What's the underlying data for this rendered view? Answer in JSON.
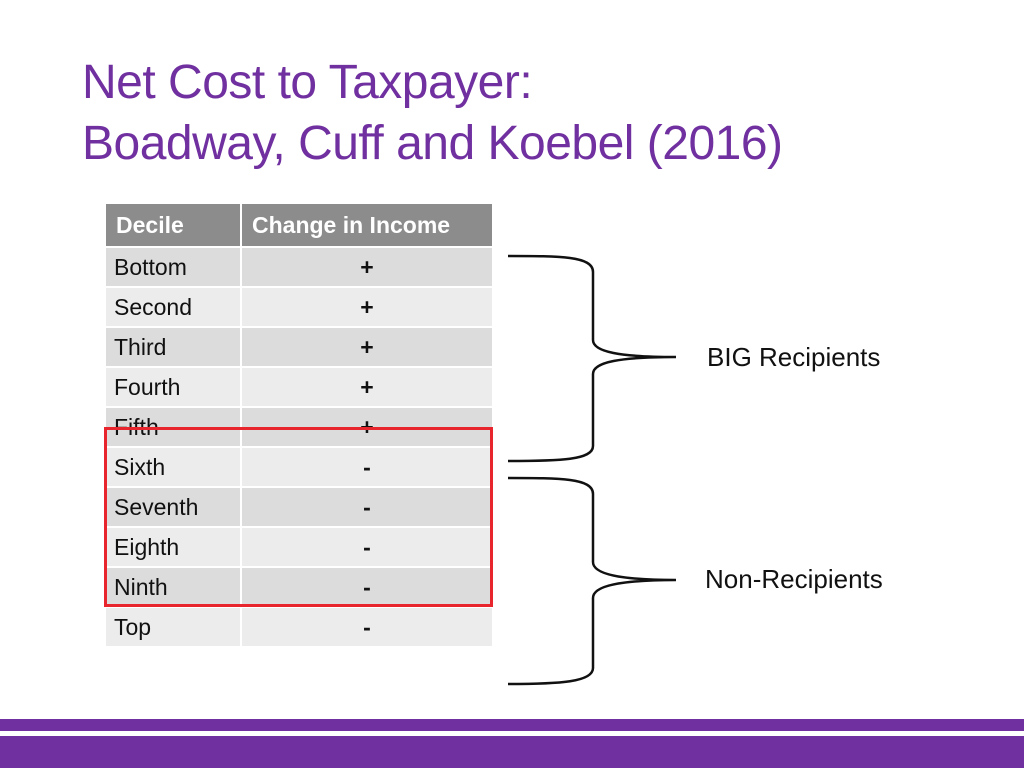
{
  "slide": {
    "title_line1": "Net Cost to Taxpayer:",
    "title_line2": "Boadway, Cuff and Koebel (2016)"
  },
  "table": {
    "headers": [
      "Decile",
      "Change in Income"
    ],
    "rows": [
      {
        "decile": "Bottom",
        "change": "+"
      },
      {
        "decile": "Second",
        "change": "+"
      },
      {
        "decile": "Third",
        "change": "+"
      },
      {
        "decile": "Fourth",
        "change": "+"
      },
      {
        "decile": "Fifth",
        "change": "+"
      },
      {
        "decile": "Sixth",
        "change": "-"
      },
      {
        "decile": "Seventh",
        "change": "-"
      },
      {
        "decile": "Eighth",
        "change": "-"
      },
      {
        "decile": "Ninth",
        "change": "-"
      },
      {
        "decile": "Top",
        "change": "-"
      }
    ]
  },
  "groups": {
    "big": "BIG Recipients",
    "non": "Non-Recipients"
  },
  "colors": {
    "accent": "#7030a0",
    "highlight": "#e8242c",
    "header_bg": "#8c8c8c"
  }
}
